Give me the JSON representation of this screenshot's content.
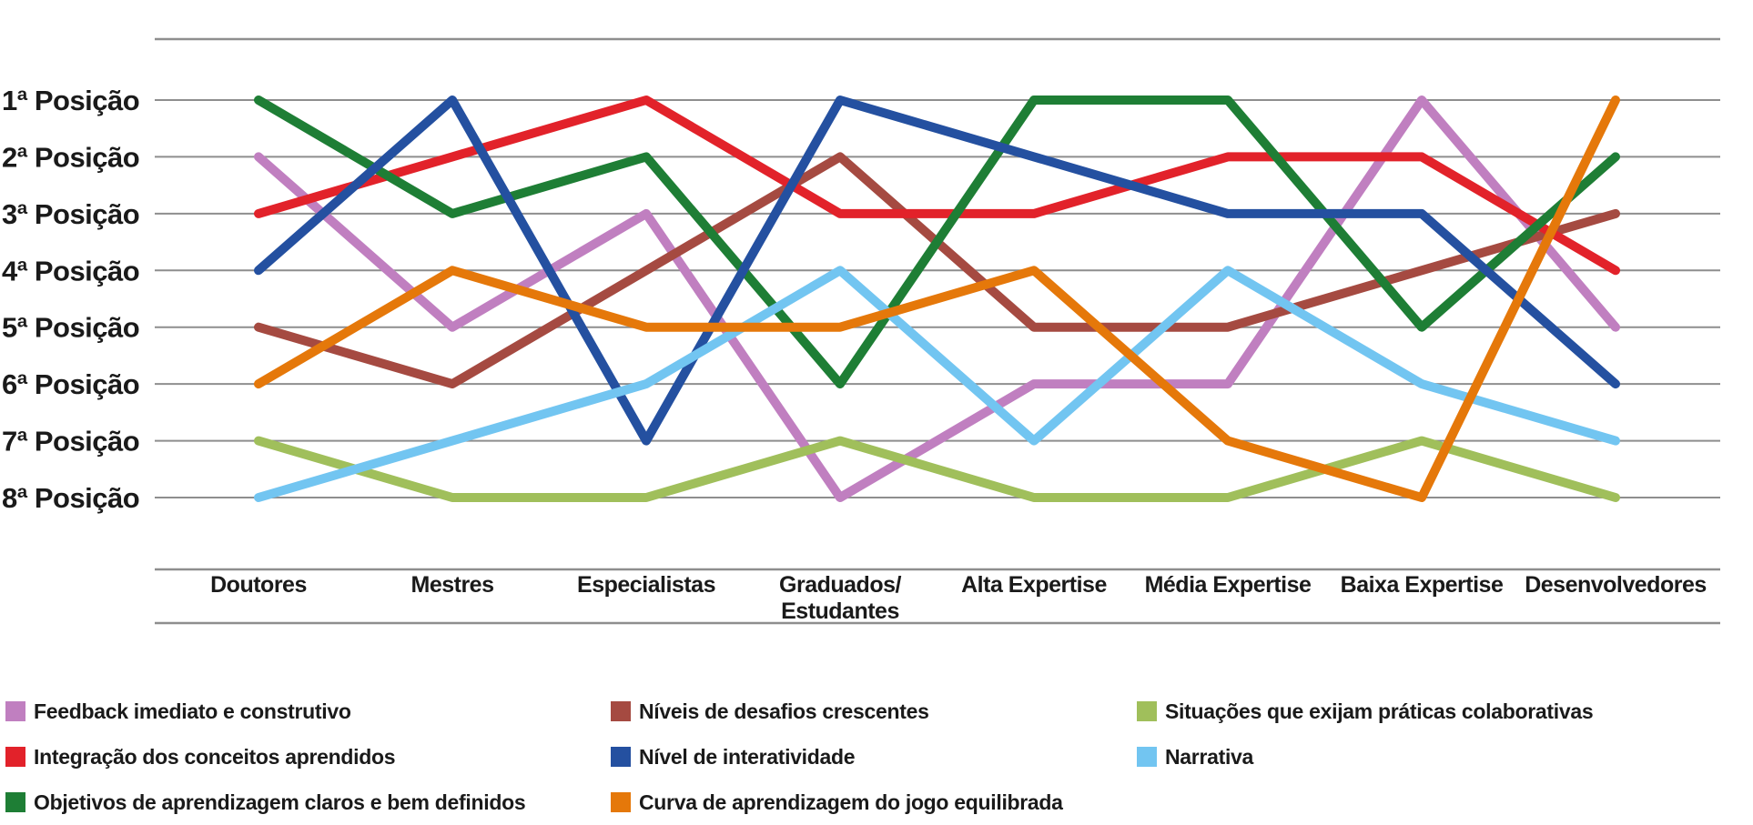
{
  "chart_data": {
    "type": "line",
    "variant": "bump-ranking",
    "title": "",
    "xlabel": "",
    "ylabel": "",
    "grid": true,
    "legend_position": "bottom",
    "y_axis": {
      "inverted": true,
      "min_rank": 1,
      "max_rank": 8
    },
    "y_tick_labels": [
      "1ª Posição",
      "2ª Posição",
      "3ª Posição",
      "4ª Posição",
      "5ª Posição",
      "6ª Posição",
      "7ª Posição",
      "8ª Posição"
    ],
    "x_categories": [
      "Doutores",
      "Mestres",
      "Especialistas",
      "Graduados/Estudantes",
      "Alta Expertise",
      "Média Expertise",
      "Baixa Expertise",
      "Desenvolvedores"
    ],
    "x_category_display_lines": [
      [
        "Doutores"
      ],
      [
        "Mestres"
      ],
      [
        "Especialistas"
      ],
      [
        "Graduados/",
        "Estudantes"
      ],
      [
        "Alta Expertise"
      ],
      [
        "Média Expertise"
      ],
      [
        "Baixa Expertise"
      ],
      [
        "Desenvolvedores"
      ]
    ],
    "series": [
      {
        "name": "Feedback imediato e construtivo",
        "color": "#C07FC0",
        "ranks": [
          2,
          5,
          3,
          8,
          6,
          6,
          1,
          5
        ]
      },
      {
        "name": "Integração dos conceitos aprendidos",
        "color": "#E2222A",
        "ranks": [
          3,
          2,
          1,
          3,
          3,
          2,
          2,
          4
        ]
      },
      {
        "name": "Objetivos de aprendizagem claros e bem definidos",
        "color": "#1E7E35",
        "ranks": [
          1,
          3,
          2,
          6,
          1,
          1,
          5,
          2
        ]
      },
      {
        "name": "Níveis de desafios crescentes",
        "color": "#A54A41",
        "ranks": [
          5,
          6,
          4,
          2,
          5,
          5,
          4,
          3
        ]
      },
      {
        "name": "Nível de interatividade",
        "color": "#2450A0",
        "ranks": [
          4,
          1,
          7,
          1,
          2,
          3,
          3,
          6
        ]
      },
      {
        "name": "Curva de aprendizagem do jogo equilibrada",
        "color": "#E5780A",
        "ranks": [
          6,
          4,
          5,
          5,
          4,
          7,
          8,
          1
        ]
      },
      {
        "name": "Situações que exijam práticas colaborativas",
        "color": "#A0BF5B",
        "ranks": [
          7,
          8,
          8,
          7,
          8,
          8,
          7,
          8
        ]
      },
      {
        "name": "Narrativa",
        "color": "#72C5F1",
        "ranks": [
          8,
          7,
          6,
          4,
          7,
          4,
          6,
          7
        ]
      }
    ],
    "draw_order": [
      0,
      6,
      3,
      1,
      2,
      4,
      7,
      5
    ],
    "style": {
      "background": "#FFFFFF",
      "gridline_color": "#8E8E8E",
      "axis_line_color": "#8E8E8E",
      "text_color": "#1A1A1A",
      "series_line_width": 10
    }
  },
  "legend": {
    "columns": [
      [
        0,
        1,
        2
      ],
      [
        3,
        4,
        5
      ],
      [
        6,
        7
      ]
    ]
  }
}
